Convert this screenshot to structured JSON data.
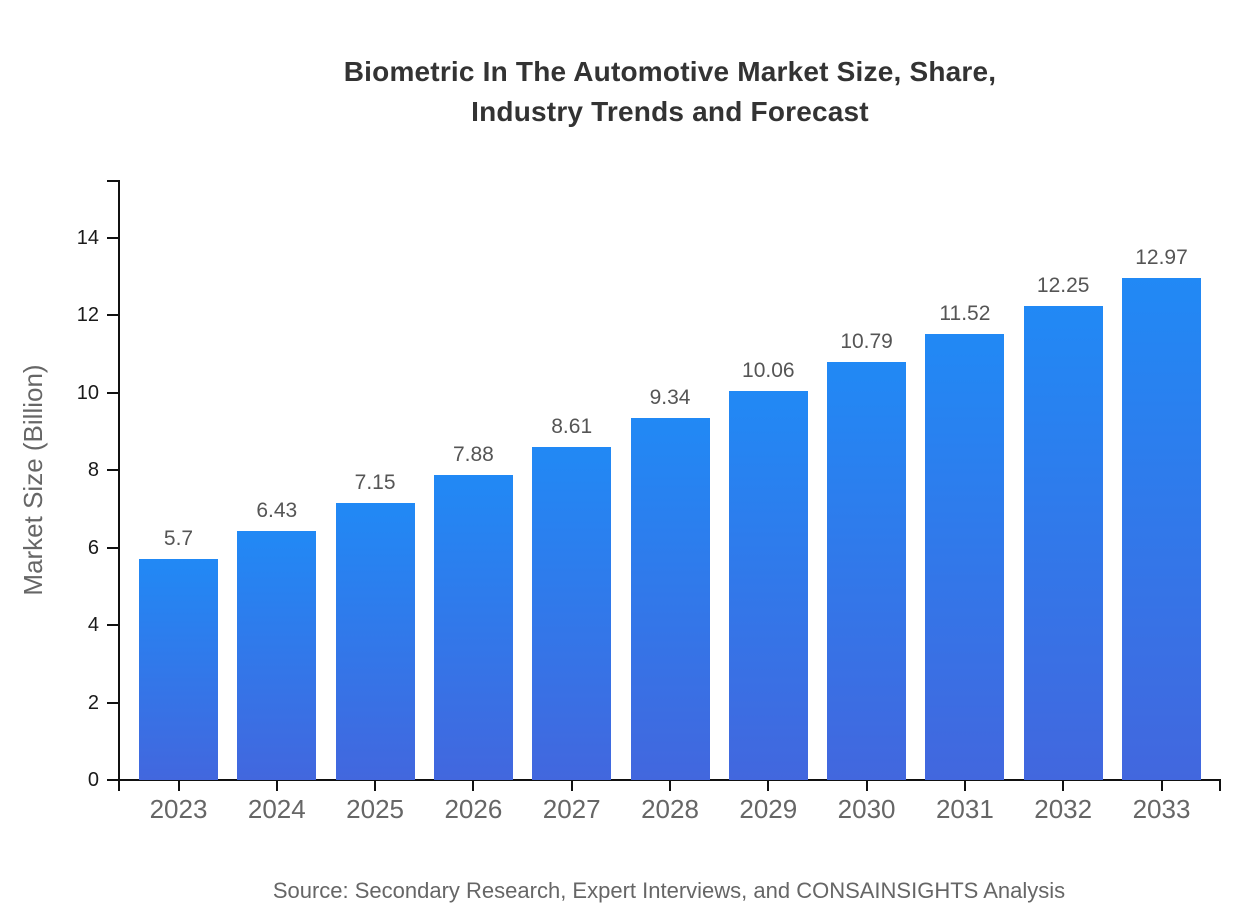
{
  "header": {
    "title_line1": "Biometric In The Automotive Market Size, Share,",
    "title_line2": "Industry Trends and Forecast"
  },
  "footer": {
    "source": "Source: Secondary Research, Expert Interviews, and CONSAINSIGHTS Analysis"
  },
  "chart_data": {
    "type": "bar",
    "title": "Biometric In The Automotive Market Size, Share, Industry Trends and Forecast",
    "categories": [
      "2023",
      "2024",
      "2025",
      "2026",
      "2027",
      "2028",
      "2029",
      "2030",
      "2031",
      "2032",
      "2033"
    ],
    "values": [
      5.7,
      6.43,
      7.15,
      7.88,
      8.61,
      9.34,
      10.06,
      10.79,
      11.52,
      12.25,
      12.97
    ],
    "xlabel": "",
    "ylabel": "Market Size (Billion)",
    "ylim": [
      0,
      15.5
    ],
    "yticks": [
      0,
      2,
      4,
      6,
      8,
      10,
      12,
      14
    ],
    "grid": false,
    "legend": null,
    "colors": {
      "bar_gradient_top": "#2189F5",
      "bar_gradient_bottom": "#4267DE",
      "axis": "#111111",
      "tick_label": "#1a1a1a",
      "x_label": "#666666",
      "value_label": "#555555",
      "title": "#333333",
      "y_axis_label": "#666666",
      "source": "#666666",
      "background": "#ffffff"
    }
  }
}
